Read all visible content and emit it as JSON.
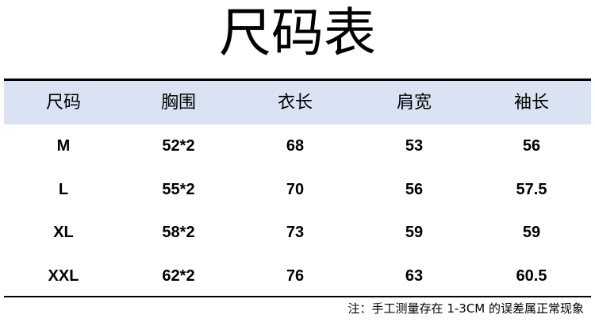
{
  "title": "尺码表",
  "table": {
    "headers": [
      "尺码",
      "胸围",
      "衣长",
      "肩宽",
      "袖长"
    ],
    "rows": [
      [
        "M",
        "52*2",
        "68",
        "53",
        "56"
      ],
      [
        "L",
        "55*2",
        "70",
        "56",
        "57.5"
      ],
      [
        "XL",
        "58*2",
        "73",
        "59",
        "59"
      ],
      [
        "XXL",
        "62*2",
        "76",
        "63",
        "60.5"
      ]
    ]
  },
  "note": "注：手工测量存在 1-3CM 的误差属正常现象",
  "colors": {
    "header_bg": "#dae3f3",
    "rule": "#000000"
  }
}
